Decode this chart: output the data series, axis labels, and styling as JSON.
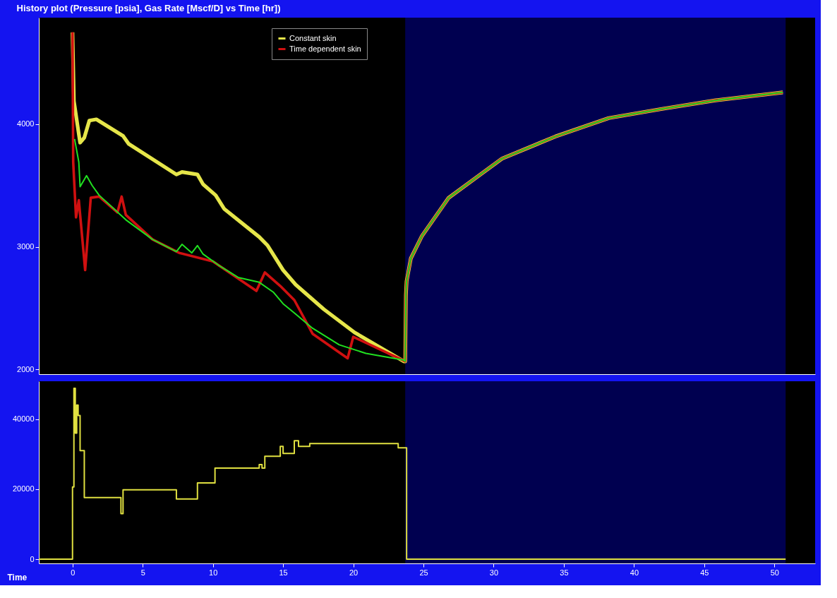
{
  "chart_data": [
    {
      "type": "line",
      "title": "History plot (Pressure [psia], Gas Rate [Mscf/D] vs Time [hr])",
      "xlim": [
        -2.4,
        52.9
      ],
      "ylim": [
        1960,
        4870
      ],
      "yticks": [
        {
          "value": 2000,
          "label": "2000"
        },
        {
          "value": 3000,
          "label": "3000"
        },
        {
          "value": 4000,
          "label": "4000"
        }
      ],
      "tick_labels": "y",
      "grid": false,
      "legend": "top",
      "marker": "none",
      "line_style": "solid",
      "bands": [
        {
          "axis": "x",
          "from": 23.7,
          "to": 50.8,
          "color": "#000050"
        }
      ],
      "series": [
        {
          "name": "Constant skin",
          "color": "#e6e64a",
          "x": [
            0,
            0.1,
            0.54,
            0.84,
            1.2,
            1.7,
            3.6,
            4.0,
            7.4,
            7.8,
            8.9,
            9.3,
            10.2,
            10.8,
            13.3,
            13.9,
            15.0,
            15.9,
            17.9,
            20.1,
            23.6,
            23.7,
            23.75,
            23.8,
            24.1,
            24.9,
            26.8,
            30.6,
            34.4,
            38.2,
            42.0,
            45.8,
            50.6
          ],
          "values": [
            4750,
            4190,
            3850,
            3890,
            4030,
            4040,
            3905,
            3840,
            3590,
            3610,
            3590,
            3510,
            3420,
            3310,
            3080,
            3010,
            2810,
            2690,
            2490,
            2300,
            2065,
            2065,
            2605,
            2720,
            2905,
            3090,
            3400,
            3720,
            3900,
            4050,
            4125,
            4195,
            4260
          ]
        },
        {
          "name": "Time dependent skin",
          "color": "#d01010",
          "x": [
            0,
            0.05,
            0.25,
            0.45,
            0.9,
            1.3,
            1.9,
            3.2,
            3.5,
            3.8,
            5.7,
            7.6,
            10.0,
            13.1,
            13.7,
            14.8,
            15.8,
            17.1,
            19.6,
            20.0,
            23.7,
            23.75,
            23.8,
            24.1,
            24.9,
            26.8,
            30.6,
            34.4,
            38.2,
            42.0,
            45.8,
            50.6
          ],
          "values": [
            4750,
            3690,
            3240,
            3380,
            2810,
            3400,
            3410,
            3280,
            3410,
            3260,
            3060,
            2950,
            2880,
            2640,
            2790,
            2680,
            2565,
            2290,
            2090,
            2265,
            2065,
            2605,
            2720,
            2905,
            3090,
            3400,
            3720,
            3900,
            4050,
            4125,
            4195,
            4260
          ]
        },
        {
          "color": "#20e020",
          "x": [
            0.15,
            0.45,
            0.54,
            1.0,
            1.4,
            1.9,
            3.8,
            5.7,
            7.4,
            7.8,
            8.5,
            8.9,
            9.3,
            10.4,
            11.8,
            13.3,
            14.3,
            15.0,
            15.8,
            17.1,
            19.0,
            20.9,
            23.6,
            23.7,
            23.75,
            23.8,
            24.1,
            24.9,
            26.8,
            30.6,
            34.4,
            38.2,
            42.0,
            45.8,
            50.6
          ],
          "values": [
            3880,
            3690,
            3490,
            3580,
            3500,
            3420,
            3220,
            3060,
            2960,
            3020,
            2950,
            3010,
            2940,
            2850,
            2750,
            2710,
            2630,
            2535,
            2460,
            2335,
            2200,
            2130,
            2075,
            2065,
            2605,
            2720,
            2905,
            3090,
            3400,
            3720,
            3900,
            4050,
            4125,
            4195,
            4260
          ]
        }
      ]
    },
    {
      "type": "step",
      "xlabel": "Time",
      "xlim": [
        -2.4,
        52.9
      ],
      "ylim": [
        -1200,
        50800
      ],
      "xticks": [
        0,
        5,
        10,
        15,
        20,
        25,
        30,
        35,
        40,
        45,
        50
      ],
      "yticks": [
        0,
        {
          "value": 20000,
          "label": "20000"
        },
        {
          "value": 40000,
          "label": "40000"
        }
      ],
      "grid": false,
      "legend": false,
      "marker": "none",
      "line_style": "solid",
      "bands": [
        {
          "axis": "x",
          "from": 23.7,
          "to": 50.8,
          "color": "#000050"
        }
      ],
      "series": [
        {
          "color": "#e0e040",
          "x": [
            -2.4,
            0,
            0.1,
            0.2,
            0.3,
            0.4,
            0.54,
            0.84,
            3.45,
            3.6,
            7.4,
            8.9,
            10.15,
            13.3,
            13.5,
            13.7,
            14.8,
            15.0,
            15.8,
            16.1,
            16.9,
            23.2,
            23.8,
            50.8
          ],
          "values": [
            0,
            20600,
            48800,
            36000,
            44000,
            41000,
            31000,
            17600,
            13000,
            19800,
            17200,
            21800,
            26000,
            27000,
            26000,
            29400,
            32200,
            30200,
            33800,
            32200,
            33000,
            31800,
            0,
            0
          ]
        }
      ]
    }
  ]
}
